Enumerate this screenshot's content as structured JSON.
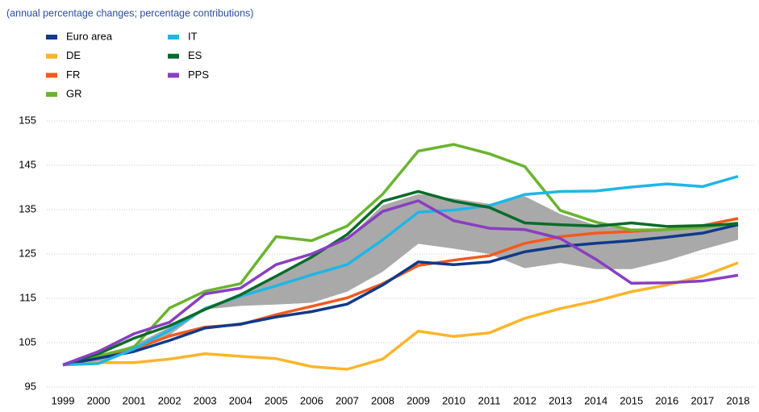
{
  "chart_data": {
    "type": "line",
    "subtitle": "(annual percentage changes; percentage contributions)",
    "categories": [
      "1999",
      "2000",
      "2001",
      "2002",
      "2003",
      "2004",
      "2005",
      "2006",
      "2007",
      "2008",
      "2009",
      "2010",
      "2011",
      "2012",
      "2013",
      "2014",
      "2015",
      "2016",
      "2017",
      "2018"
    ],
    "series": [
      {
        "name": "Euro area",
        "color": "#103a8a",
        "values": [
          100,
          101.5,
          103,
          105.5,
          108.3,
          109.2,
          110.8,
          112,
          113.7,
          118,
          123.2,
          122.6,
          123.2,
          125.5,
          126.7,
          127.4,
          128,
          128.8,
          129.7,
          131.6
        ]
      },
      {
        "name": "DE",
        "color": "#fbb52a",
        "values": [
          100,
          100.5,
          100.5,
          101.3,
          102.5,
          101.9,
          101.4,
          99.6,
          99,
          101.3,
          107.6,
          106.4,
          107.2,
          110.5,
          112.7,
          114.4,
          116.5,
          118,
          120,
          123
        ]
      },
      {
        "name": "FR",
        "color": "#f4591e",
        "values": [
          100,
          101.5,
          103.5,
          106.5,
          108.5,
          109.1,
          111.3,
          113.2,
          115.1,
          118.3,
          122.4,
          123.6,
          124.6,
          127.4,
          128.9,
          129.7,
          130.1,
          130.5,
          131.4,
          133
        ]
      },
      {
        "name": "GR",
        "color": "#6ab42d",
        "values": [
          100,
          102,
          104,
          112.8,
          116.6,
          118.3,
          128.9,
          128,
          131.3,
          138.5,
          148.2,
          149.7,
          147.6,
          144.7,
          134.8,
          132.2,
          130.4,
          130.5,
          131,
          132
        ]
      },
      {
        "name": "IT",
        "color": "#1fb6e6",
        "values": [
          100,
          100.3,
          103.6,
          107.8,
          112.7,
          115.5,
          117.8,
          120.3,
          122.6,
          128.2,
          134.4,
          134.9,
          135.9,
          138.4,
          139.1,
          139.2,
          140.1,
          140.8,
          140.2,
          142.5
        ]
      },
      {
        "name": "ES",
        "color": "#0a6b2a",
        "values": [
          100,
          102.5,
          106,
          108.8,
          112.5,
          115.8,
          120,
          124.3,
          129.4,
          136.9,
          139.1,
          136.9,
          135.5,
          132,
          131.6,
          131.3,
          132,
          131.2,
          131.4,
          131.8
        ]
      },
      {
        "name": "PPS",
        "color": "#8a3ec1",
        "values": [
          100,
          103,
          107,
          109.6,
          116,
          117.3,
          122.6,
          125,
          128.5,
          134.6,
          137,
          132.5,
          130.8,
          130.5,
          128.5,
          123.8,
          118.4,
          118.5,
          118.9,
          120.2
        ]
      }
    ],
    "band": {
      "color": "#a9a9a9",
      "lower": [
        100,
        100.7,
        103,
        106.7,
        112.5,
        113.3,
        113.6,
        114,
        116.5,
        121,
        127.3,
        126.2,
        125,
        121.8,
        123,
        121.6,
        121.6,
        123.5,
        126,
        128.2
      ],
      "upper": [
        100,
        101.5,
        104.5,
        108.5,
        112.5,
        115.8,
        120,
        124.3,
        128.5,
        136,
        138.5,
        137.5,
        136.3,
        138,
        134,
        131.5,
        130.5,
        130.5,
        131,
        132
      ]
    },
    "ylim": [
      95,
      155
    ],
    "yticks": [
      95,
      105,
      115,
      125,
      135,
      145,
      155
    ],
    "grid": true
  }
}
